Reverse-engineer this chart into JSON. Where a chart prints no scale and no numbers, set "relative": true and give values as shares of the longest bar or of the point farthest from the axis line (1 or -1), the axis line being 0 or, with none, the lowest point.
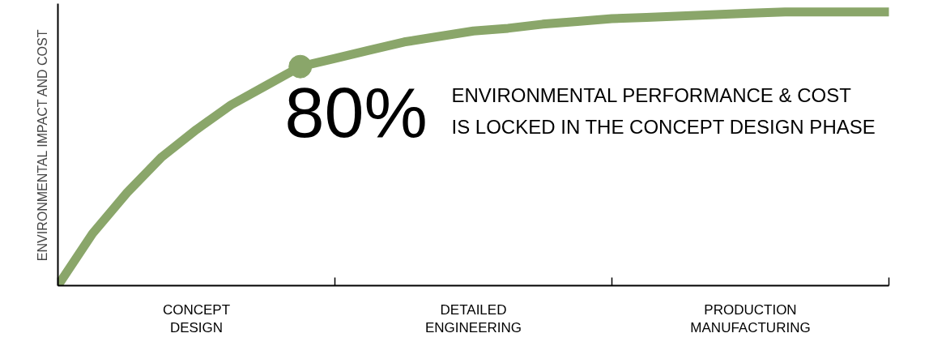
{
  "chart_data": {
    "type": "line",
    "relative": true,
    "ylabel": "ENVIRONMENTAL IMPACT AND COST",
    "categories": [
      null,
      null,
      null,
      null,
      "CONCEPT\nDESIGN",
      null,
      null,
      null,
      null,
      null,
      null,
      null,
      "DETAILED\nENGINEERING",
      null,
      null,
      null,
      null,
      null,
      null,
      null,
      "PRODUCTION\nMANUFACTURING",
      null,
      null,
      null,
      null
    ],
    "series": [
      {
        "color": "#8aa66a",
        "values": [
          0,
          0.19,
          0.34,
          0.47,
          0.57,
          0.66,
          0.73,
          0.8,
          0.83,
          0.86,
          0.89,
          0.91,
          0.93,
          0.94,
          0.955,
          0.965,
          0.975,
          0.98,
          0.985,
          0.99,
          0.995,
          1,
          1,
          1,
          1
        ]
      },
      {
        "type": "scatter",
        "color": "#8aa66a",
        "marker": "circle",
        "values": [
          null,
          null,
          null,
          null,
          null,
          null,
          null,
          0.8,
          null,
          null,
          null,
          null,
          null,
          null,
          null,
          null,
          null,
          null,
          null,
          null,
          null,
          null,
          null,
          null,
          null
        ]
      }
    ],
    "annotations": [
      "80%",
      "ENVIRONMENTAL PERFORMANCE & COST\nIS LOCKED IN THE CONCEPT DESIGN PHASE"
    ],
    "grid": false
  }
}
